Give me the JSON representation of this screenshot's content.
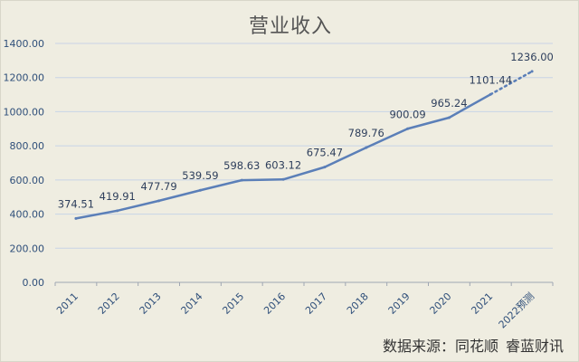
{
  "source": {
    "prefix": "数据来源：同花顺",
    "suffix": "睿蓝财讯"
  },
  "chart_data": {
    "type": "line",
    "title": "营业收入",
    "xlabel": "",
    "ylabel": "",
    "categories": [
      "2011",
      "2012",
      "2013",
      "2014",
      "2015",
      "2016",
      "2017",
      "2018",
      "2019",
      "2020",
      "2021",
      "2022预测"
    ],
    "series": [
      {
        "values": [
          374.51,
          419.91,
          477.79,
          539.59,
          598.63,
          603.12,
          675.47,
          789.76,
          900.09,
          965.24,
          1101.44,
          1236.0
        ],
        "value_labels": [
          "374.51",
          "419.91",
          "477.79",
          "539.59",
          "598.63",
          "603.12",
          "675.47",
          "789.76",
          "900.09",
          "965.24",
          "1101.44",
          "1236.00"
        ],
        "forecast_from_index": 10,
        "color": "#5b7fb8"
      }
    ],
    "ylim": [
      0,
      1400
    ],
    "y_ticks": [
      "0.00",
      "200.00",
      "400.00",
      "600.00",
      "800.00",
      "1000.00",
      "1200.00",
      "1400.00"
    ],
    "grid": true,
    "legend": "none"
  },
  "colors": {
    "background": "#efede1",
    "grid": "#c8d4e6",
    "axis": "#9fa6b2",
    "tick_text": "#2f4f7a",
    "label_text": "#2e3f5c"
  }
}
